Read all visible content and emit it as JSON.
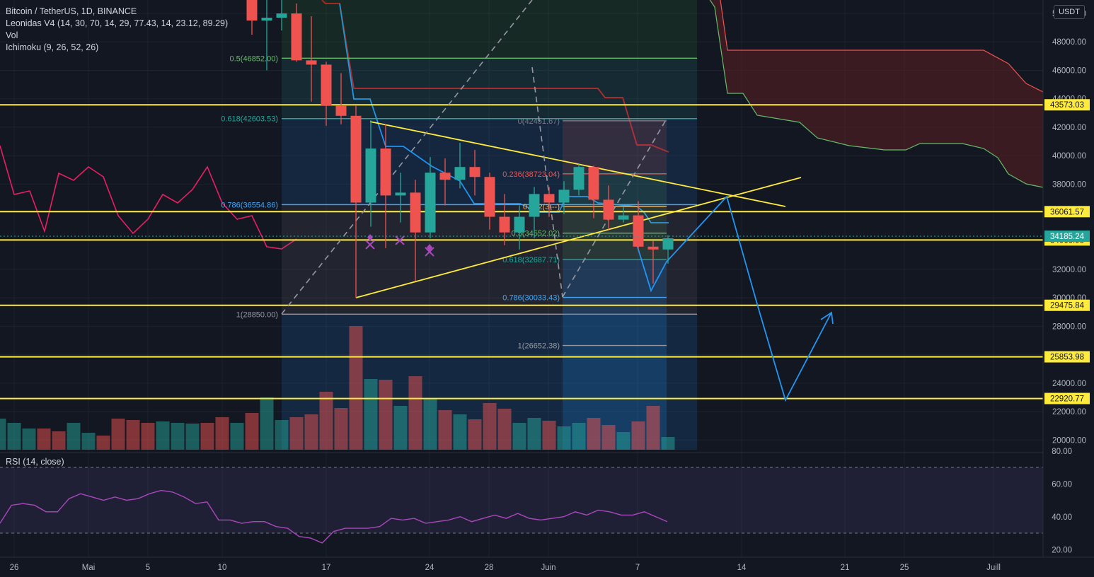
{
  "legend": {
    "symbol": "Bitcoin / TetherUS, 1D, BINANCE",
    "indicator": "Leonidas V4 (14, 30, 70, 14, 29, 77.43, 14, 23.12, 89.29)",
    "vol": "Vol",
    "ichimoku": "Ichimoku (9, 26, 52, 26)"
  },
  "rsi_label": "RSI (14, close)",
  "currency_button": "USDT",
  "colors": {
    "background": "#131722",
    "up": "#26a69a",
    "down": "#ef5350",
    "horizontal_level": "#ffeb3b",
    "projection": "#2196f3",
    "leonidas_line": "#e91e63",
    "rsi_line": "#ab47bc",
    "cloud_fill": "#5b1f22"
  },
  "chart_data": {
    "type": "candlestick",
    "title": "Bitcoin / TetherUS, 1D, BINANCE",
    "x_tick_labels": [
      "26",
      "Mai",
      "5",
      "10",
      "17",
      "24",
      "28",
      "Juin",
      "7",
      "14",
      "21",
      "25",
      "Juill"
    ],
    "y_tick_labels": [
      "50000.00",
      "48000.00",
      "46000.00",
      "44000.00",
      "42000.00",
      "40000.00",
      "38000.00",
      "32000.00",
      "30000.00",
      "28000.00",
      "24000.00",
      "22000.00",
      "20000.00"
    ],
    "ylim": [
      19000,
      51000
    ],
    "grid": true,
    "candles": [
      {
        "date": "2021-05-12",
        "open": 56700,
        "high": 58000,
        "low": 48500,
        "close": 49500
      },
      {
        "date": "2021-05-13",
        "open": 49500,
        "high": 51400,
        "low": 46000,
        "close": 49700
      },
      {
        "date": "2021-05-14",
        "open": 49700,
        "high": 51500,
        "low": 48800,
        "close": 50000
      },
      {
        "date": "2021-05-15",
        "open": 50000,
        "high": 50700,
        "low": 46600,
        "close": 46700
      },
      {
        "date": "2021-05-16",
        "open": 46700,
        "high": 49800,
        "low": 43800,
        "close": 46400
      },
      {
        "date": "2021-05-17",
        "open": 46400,
        "high": 46600,
        "low": 42100,
        "close": 43500
      },
      {
        "date": "2021-05-18",
        "open": 43500,
        "high": 45800,
        "low": 42200,
        "close": 42800
      },
      {
        "date": "2021-05-19",
        "open": 42800,
        "high": 43500,
        "low": 30000,
        "close": 36700
      },
      {
        "date": "2021-05-20",
        "open": 36700,
        "high": 42500,
        "low": 35000,
        "close": 40500
      },
      {
        "date": "2021-05-21",
        "open": 40500,
        "high": 42200,
        "low": 33500,
        "close": 37200
      },
      {
        "date": "2021-05-22",
        "open": 37200,
        "high": 38800,
        "low": 35300,
        "close": 37400
      },
      {
        "date": "2021-05-23",
        "open": 37400,
        "high": 38300,
        "low": 31200,
        "close": 34600
      },
      {
        "date": "2021-05-24",
        "open": 34600,
        "high": 39900,
        "low": 34200,
        "close": 38800
      },
      {
        "date": "2021-05-25",
        "open": 38800,
        "high": 39800,
        "low": 36500,
        "close": 38300
      },
      {
        "date": "2021-05-26",
        "open": 38300,
        "high": 40900,
        "low": 37700,
        "close": 39200
      },
      {
        "date": "2021-05-27",
        "open": 39200,
        "high": 40400,
        "low": 37200,
        "close": 38500
      },
      {
        "date": "2021-05-28",
        "open": 38500,
        "high": 38800,
        "low": 34800,
        "close": 35700
      },
      {
        "date": "2021-05-29",
        "open": 35700,
        "high": 37300,
        "low": 33700,
        "close": 34600
      },
      {
        "date": "2021-05-30",
        "open": 34600,
        "high": 36500,
        "low": 33400,
        "close": 35700
      },
      {
        "date": "2021-05-31",
        "open": 35700,
        "high": 37800,
        "low": 34200,
        "close": 37300
      },
      {
        "date": "2021-06-01",
        "open": 37300,
        "high": 37800,
        "low": 35700,
        "close": 36700
      },
      {
        "date": "2021-06-02",
        "open": 36700,
        "high": 38200,
        "low": 35900,
        "close": 37600
      },
      {
        "date": "2021-06-03",
        "open": 37600,
        "high": 39400,
        "low": 37200,
        "close": 39200
      },
      {
        "date": "2021-06-04",
        "open": 39200,
        "high": 39300,
        "low": 35600,
        "close": 36900
      },
      {
        "date": "2021-06-05",
        "open": 36900,
        "high": 37900,
        "low": 34800,
        "close": 35500
      },
      {
        "date": "2021-06-06",
        "open": 35500,
        "high": 36400,
        "low": 35300,
        "close": 35800
      },
      {
        "date": "2021-06-07",
        "open": 35800,
        "high": 36800,
        "low": 33400,
        "close": 33600
      },
      {
        "date": "2021-06-08",
        "open": 33600,
        "high": 34000,
        "low": 31000,
        "close": 33400
      },
      {
        "date": "2021-06-09",
        "open": 33400,
        "high": 34400,
        "low": 32400,
        "close": 34185
      }
    ],
    "volume": [
      {
        "date": "2021-04-25",
        "value": 44,
        "dir": "up"
      },
      {
        "date": "2021-04-26",
        "value": 38,
        "dir": "up"
      },
      {
        "date": "2021-04-27",
        "value": 30,
        "dir": "up"
      },
      {
        "date": "2021-04-28",
        "value": 30,
        "dir": "down"
      },
      {
        "date": "2021-04-29",
        "value": 26,
        "dir": "down"
      },
      {
        "date": "2021-04-30",
        "value": 38,
        "dir": "up"
      },
      {
        "date": "2021-05-01",
        "value": 24,
        "dir": "up"
      },
      {
        "date": "2021-05-02",
        "value": 20,
        "dir": "down"
      },
      {
        "date": "2021-05-03",
        "value": 44,
        "dir": "down"
      },
      {
        "date": "2021-05-04",
        "value": 42,
        "dir": "down"
      },
      {
        "date": "2021-05-05",
        "value": 38,
        "dir": "down"
      },
      {
        "date": "2021-05-06",
        "value": 40,
        "dir": "up"
      },
      {
        "date": "2021-05-07",
        "value": 38,
        "dir": "up"
      },
      {
        "date": "2021-05-08",
        "value": 37,
        "dir": "up"
      },
      {
        "date": "2021-05-09",
        "value": 38,
        "dir": "down"
      },
      {
        "date": "2021-05-10",
        "value": 46,
        "dir": "down"
      },
      {
        "date": "2021-05-11",
        "value": 38,
        "dir": "up"
      },
      {
        "date": "2021-05-12",
        "value": 52,
        "dir": "down"
      },
      {
        "date": "2021-05-13",
        "value": 74,
        "dir": "up"
      },
      {
        "date": "2021-05-14",
        "value": 42,
        "dir": "up"
      },
      {
        "date": "2021-05-15",
        "value": 46,
        "dir": "down"
      },
      {
        "date": "2021-05-16",
        "value": 50,
        "dir": "down"
      },
      {
        "date": "2021-05-17",
        "value": 82,
        "dir": "down"
      },
      {
        "date": "2021-05-18",
        "value": 59,
        "dir": "down"
      },
      {
        "date": "2021-05-19",
        "value": 175,
        "dir": "down"
      },
      {
        "date": "2021-05-20",
        "value": 100,
        "dir": "up"
      },
      {
        "date": "2021-05-21",
        "value": 99,
        "dir": "down"
      },
      {
        "date": "2021-05-22",
        "value": 62,
        "dir": "up"
      },
      {
        "date": "2021-05-23",
        "value": 104,
        "dir": "down"
      },
      {
        "date": "2021-05-24",
        "value": 72,
        "dir": "up"
      },
      {
        "date": "2021-05-25",
        "value": 56,
        "dir": "down"
      },
      {
        "date": "2021-05-26",
        "value": 50,
        "dir": "up"
      },
      {
        "date": "2021-05-27",
        "value": 43,
        "dir": "down"
      },
      {
        "date": "2021-05-28",
        "value": 66,
        "dir": "down"
      },
      {
        "date": "2021-05-29",
        "value": 58,
        "dir": "down"
      },
      {
        "date": "2021-05-30",
        "value": 38,
        "dir": "up"
      },
      {
        "date": "2021-05-31",
        "value": 45,
        "dir": "up"
      },
      {
        "date": "2021-06-01",
        "value": 41,
        "dir": "down"
      },
      {
        "date": "2021-06-02",
        "value": 33,
        "dir": "up"
      },
      {
        "date": "2021-06-03",
        "value": 38,
        "dir": "up"
      },
      {
        "date": "2021-06-04",
        "value": 45,
        "dir": "down"
      },
      {
        "date": "2021-06-05",
        "value": 35,
        "dir": "down"
      },
      {
        "date": "2021-06-06",
        "value": 25,
        "dir": "up"
      },
      {
        "date": "2021-06-07",
        "value": 40,
        "dir": "down"
      },
      {
        "date": "2021-06-08",
        "value": 62,
        "dir": "down"
      },
      {
        "date": "2021-06-09",
        "value": 18,
        "dir": "up"
      }
    ],
    "horizontal_levels": [
      {
        "price": 43573.03,
        "label": "43573.03"
      },
      {
        "price": 36061.57,
        "label": "36061.57"
      },
      {
        "price": 34066.98,
        "label": "34066.98"
      },
      {
        "price": 29475.84,
        "label": "29475.84"
      },
      {
        "price": 25853.98,
        "label": "25853.98"
      },
      {
        "price": 22920.77,
        "label": "22920.77"
      }
    ],
    "last_price": {
      "price": 34185.24,
      "label": "34185.24"
    },
    "fib_a": [
      {
        "label": "0.5(46852.00)",
        "price": 46852.0,
        "color": "#66bb6a"
      },
      {
        "label": "0.618(42603.53)",
        "price": 42603.53,
        "color": "#26a69a"
      },
      {
        "label": "0.786(36554.86)",
        "price": 36554.86,
        "color": "#42a5f5"
      },
      {
        "label": "1(28850.00)",
        "price": 28850.0,
        "color": "#9598a1"
      }
    ],
    "fib_b": [
      {
        "label": "0(42451.67)",
        "price": 42451.67,
        "color": "#787b86"
      },
      {
        "label": "0.236(38723.04)",
        "price": 38723.04,
        "color": "#ef5350"
      },
      {
        "label": "0.382(3---)",
        "price": 36422,
        "color": "#ffb74d"
      },
      {
        "label": "0.5(34552.02)",
        "price": 34552.02,
        "color": "#66bb6a"
      },
      {
        "label": "0.618(32687.71)",
        "price": 32687.71,
        "color": "#26a69a"
      },
      {
        "label": "0.786(30033.43)",
        "price": 30033.43,
        "color": "#42a5f5"
      },
      {
        "label": "1(26652.38)",
        "price": 26652.38,
        "color": "#9598a1"
      }
    ],
    "projection_path": [
      {
        "date": "2021-06-09",
        "price": 34185
      },
      {
        "date": "2021-06-13",
        "price": 37200
      },
      {
        "date": "2021-06-16",
        "price": 29500
      },
      {
        "date": "2021-06-17",
        "price": 27500
      },
      {
        "date": "2021-06-19",
        "price": 22920
      },
      {
        "date": "2021-06-21",
        "price": 27000
      },
      {
        "date": "2021-06-22",
        "price": 29000
      }
    ],
    "rsi": {
      "ylim": [
        15,
        82
      ],
      "tick_labels": [
        "80.00",
        "60.00",
        "40.00",
        "20.00"
      ],
      "bands": [
        70,
        30
      ],
      "values": [
        36,
        47,
        48,
        47,
        43,
        43,
        51,
        54,
        52,
        50,
        52,
        50,
        51,
        54,
        56,
        55,
        52,
        48,
        49,
        38,
        38,
        36,
        37,
        37,
        34,
        33,
        28,
        27,
        24,
        31,
        33,
        33,
        33,
        34,
        39,
        38,
        39,
        36,
        37,
        38,
        40,
        37,
        39,
        41,
        39,
        42,
        39,
        38,
        39,
        40,
        43,
        41,
        44,
        43,
        41,
        41,
        43,
        40,
        37
      ]
    }
  }
}
